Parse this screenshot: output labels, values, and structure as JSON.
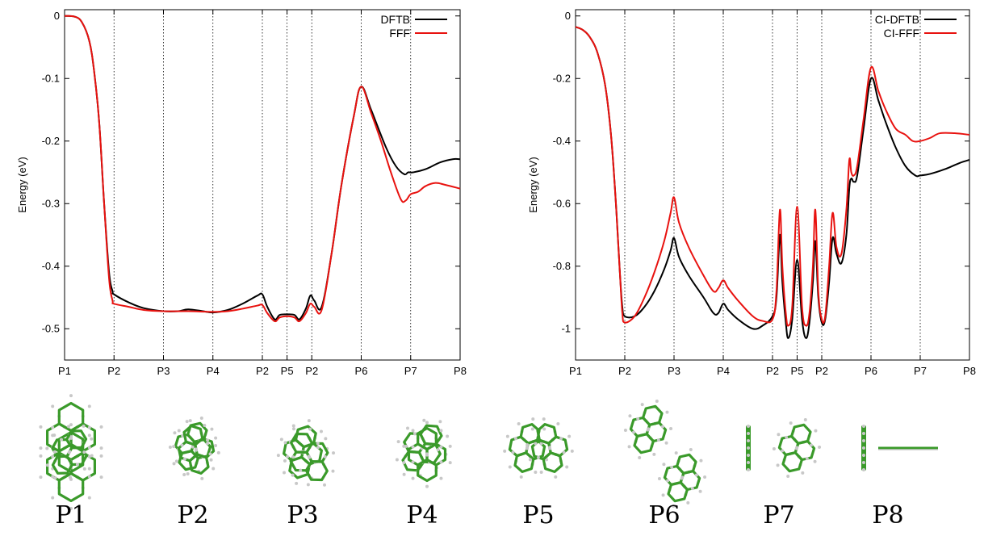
{
  "chart_data": [
    {
      "type": "line",
      "title": "",
      "xlabel": "",
      "ylabel": "Energy (eV)",
      "x_ticks": [
        {
          "label": "P1",
          "pos": 0
        },
        {
          "label": "P2",
          "pos": 1
        },
        {
          "label": "P3",
          "pos": 2
        },
        {
          "label": "P4",
          "pos": 3
        },
        {
          "label": "P2",
          "pos": 4
        },
        {
          "label": "P5",
          "pos": 4.5
        },
        {
          "label": "P2",
          "pos": 5
        },
        {
          "label": "P6",
          "pos": 6
        },
        {
          "label": "P7",
          "pos": 7
        },
        {
          "label": "P8",
          "pos": 8
        }
      ],
      "xlim": [
        0,
        8
      ],
      "ylim": [
        -0.55,
        0.01
      ],
      "y_ticks": [
        0,
        -0.1,
        -0.2,
        -0.3,
        -0.4,
        -0.5
      ],
      "y_tick_labels": [
        "0",
        "-0.1",
        "-0.2",
        "-0.3",
        "-0.4",
        "-0.5"
      ],
      "grid": "vertical dotted lines at path points",
      "legend_position": "top-right",
      "series": [
        {
          "name": "DFTB",
          "color": "#000000",
          "points": [
            [
              0,
              0
            ],
            [
              0.2,
              -0.001
            ],
            [
              0.35,
              -0.01
            ],
            [
              0.5,
              -0.04
            ],
            [
              0.6,
              -0.09
            ],
            [
              0.7,
              -0.17
            ],
            [
              0.8,
              -0.3
            ],
            [
              0.9,
              -0.41
            ],
            [
              0.97,
              -0.44
            ],
            [
              1.0,
              -0.445
            ],
            [
              1.3,
              -0.458
            ],
            [
              1.6,
              -0.467
            ],
            [
              2.0,
              -0.472
            ],
            [
              2.3,
              -0.472
            ],
            [
              2.5,
              -0.469
            ],
            [
              2.8,
              -0.472
            ],
            [
              3.0,
              -0.474
            ],
            [
              3.3,
              -0.47
            ],
            [
              3.6,
              -0.46
            ],
            [
              3.9,
              -0.447
            ],
            [
              4.0,
              -0.445
            ],
            [
              4.1,
              -0.465
            ],
            [
              4.25,
              -0.485
            ],
            [
              4.35,
              -0.478
            ],
            [
              4.5,
              -0.477
            ],
            [
              4.65,
              -0.478
            ],
            [
              4.75,
              -0.485
            ],
            [
              4.88,
              -0.468
            ],
            [
              4.97,
              -0.447
            ],
            [
              5.05,
              -0.455
            ],
            [
              5.2,
              -0.465
            ],
            [
              5.4,
              -0.38
            ],
            [
              5.6,
              -0.27
            ],
            [
              5.85,
              -0.16
            ],
            [
              6.0,
              -0.113
            ],
            [
              6.2,
              -0.15
            ],
            [
              6.5,
              -0.21
            ],
            [
              6.7,
              -0.24
            ],
            [
              6.87,
              -0.253
            ],
            [
              6.95,
              -0.25
            ],
            [
              7.05,
              -0.25
            ],
            [
              7.3,
              -0.245
            ],
            [
              7.6,
              -0.234
            ],
            [
              7.85,
              -0.229
            ],
            [
              8.0,
              -0.229
            ]
          ]
        },
        {
          "name": "FFF",
          "color": "#e8120f",
          "points": [
            [
              0,
              0
            ],
            [
              0.2,
              -0.001
            ],
            [
              0.35,
              -0.01
            ],
            [
              0.5,
              -0.04
            ],
            [
              0.6,
              -0.09
            ],
            [
              0.7,
              -0.17
            ],
            [
              0.8,
              -0.3
            ],
            [
              0.9,
              -0.42
            ],
            [
              0.97,
              -0.455
            ],
            [
              1.0,
              -0.46
            ],
            [
              1.3,
              -0.465
            ],
            [
              1.6,
              -0.47
            ],
            [
              2.0,
              -0.472
            ],
            [
              2.5,
              -0.472
            ],
            [
              3.0,
              -0.473
            ],
            [
              3.3,
              -0.472
            ],
            [
              3.6,
              -0.468
            ],
            [
              3.9,
              -0.463
            ],
            [
              4.0,
              -0.462
            ],
            [
              4.1,
              -0.475
            ],
            [
              4.25,
              -0.488
            ],
            [
              4.35,
              -0.482
            ],
            [
              4.5,
              -0.48
            ],
            [
              4.65,
              -0.482
            ],
            [
              4.75,
              -0.488
            ],
            [
              4.88,
              -0.475
            ],
            [
              4.97,
              -0.46
            ],
            [
              5.05,
              -0.465
            ],
            [
              5.2,
              -0.47
            ],
            [
              5.4,
              -0.38
            ],
            [
              5.6,
              -0.27
            ],
            [
              5.85,
              -0.16
            ],
            [
              6.0,
              -0.113
            ],
            [
              6.2,
              -0.155
            ],
            [
              6.4,
              -0.2
            ],
            [
              6.6,
              -0.25
            ],
            [
              6.8,
              -0.293
            ],
            [
              6.9,
              -0.295
            ],
            [
              7.0,
              -0.285
            ],
            [
              7.15,
              -0.281
            ],
            [
              7.3,
              -0.272
            ],
            [
              7.5,
              -0.267
            ],
            [
              7.7,
              -0.27
            ],
            [
              8.0,
              -0.276
            ]
          ]
        }
      ]
    },
    {
      "type": "line",
      "title": "",
      "xlabel": "",
      "ylabel": "Energy (eV)",
      "x_ticks": [
        {
          "label": "P1",
          "pos": 0
        },
        {
          "label": "P2",
          "pos": 1
        },
        {
          "label": "P3",
          "pos": 2
        },
        {
          "label": "P4",
          "pos": 3
        },
        {
          "label": "P2",
          "pos": 4
        },
        {
          "label": "P5",
          "pos": 4.5
        },
        {
          "label": "P2",
          "pos": 5
        },
        {
          "label": "P6",
          "pos": 6
        },
        {
          "label": "P7",
          "pos": 7
        },
        {
          "label": "P8",
          "pos": 8
        }
      ],
      "xlim": [
        0,
        8
      ],
      "ylim": [
        -1.1,
        0.02
      ],
      "y_ticks": [
        0,
        -0.2,
        -0.4,
        -0.6,
        -0.8,
        -1
      ],
      "y_tick_labels": [
        "0",
        "-0.2",
        "-0.4",
        "-0.6",
        "-0.8",
        "-1"
      ],
      "grid": "vertical dotted lines at path points",
      "legend_position": "top-right",
      "series": [
        {
          "name": "CI-DFTB",
          "color": "#000000",
          "points": [
            [
              0,
              -0.035
            ],
            [
              0.15,
              -0.045
            ],
            [
              0.3,
              -0.07
            ],
            [
              0.45,
              -0.12
            ],
            [
              0.6,
              -0.22
            ],
            [
              0.72,
              -0.38
            ],
            [
              0.82,
              -0.6
            ],
            [
              0.9,
              -0.82
            ],
            [
              0.95,
              -0.93
            ],
            [
              1.0,
              -0.96
            ],
            [
              1.2,
              -0.96
            ],
            [
              1.4,
              -0.93
            ],
            [
              1.6,
              -0.88
            ],
            [
              1.8,
              -0.81
            ],
            [
              1.93,
              -0.75
            ],
            [
              2.0,
              -0.71
            ],
            [
              2.1,
              -0.77
            ],
            [
              2.3,
              -0.83
            ],
            [
              2.6,
              -0.9
            ],
            [
              2.8,
              -0.95
            ],
            [
              2.9,
              -0.95
            ],
            [
              3.0,
              -0.92
            ],
            [
              3.1,
              -0.94
            ],
            [
              3.3,
              -0.97
            ],
            [
              3.6,
              -1.0
            ],
            [
              3.8,
              -0.99
            ],
            [
              4.0,
              -0.96
            ],
            [
              4.08,
              -0.9
            ],
            [
              4.15,
              -0.7
            ],
            [
              4.2,
              -0.85
            ],
            [
              4.27,
              -0.98
            ],
            [
              4.32,
              -1.03
            ],
            [
              4.4,
              -0.97
            ],
            [
              4.5,
              -0.78
            ],
            [
              4.6,
              -0.97
            ],
            [
              4.68,
              -1.03
            ],
            [
              4.75,
              -0.98
            ],
            [
              4.82,
              -0.85
            ],
            [
              4.87,
              -0.72
            ],
            [
              4.93,
              -0.9
            ],
            [
              5.0,
              -0.98
            ],
            [
              5.07,
              -0.97
            ],
            [
              5.15,
              -0.85
            ],
            [
              5.22,
              -0.71
            ],
            [
              5.3,
              -0.76
            ],
            [
              5.4,
              -0.79
            ],
            [
              5.5,
              -0.7
            ],
            [
              5.56,
              -0.55
            ],
            [
              5.6,
              -0.52
            ],
            [
              5.65,
              -0.53
            ],
            [
              5.72,
              -0.51
            ],
            [
              5.85,
              -0.36
            ],
            [
              6.0,
              -0.2
            ],
            [
              6.15,
              -0.27
            ],
            [
              6.3,
              -0.34
            ],
            [
              6.5,
              -0.42
            ],
            [
              6.7,
              -0.48
            ],
            [
              6.9,
              -0.51
            ],
            [
              7.0,
              -0.51
            ],
            [
              7.2,
              -0.505
            ],
            [
              7.5,
              -0.49
            ],
            [
              7.8,
              -0.47
            ],
            [
              8.0,
              -0.46
            ]
          ]
        },
        {
          "name": "CI-FFF",
          "color": "#e8120f",
          "points": [
            [
              0,
              -0.035
            ],
            [
              0.15,
              -0.045
            ],
            [
              0.3,
              -0.07
            ],
            [
              0.45,
              -0.12
            ],
            [
              0.6,
              -0.22
            ],
            [
              0.72,
              -0.38
            ],
            [
              0.82,
              -0.6
            ],
            [
              0.9,
              -0.82
            ],
            [
              0.95,
              -0.95
            ],
            [
              1.0,
              -0.98
            ],
            [
              1.2,
              -0.96
            ],
            [
              1.4,
              -0.9
            ],
            [
              1.6,
              -0.82
            ],
            [
              1.8,
              -0.72
            ],
            [
              1.93,
              -0.63
            ],
            [
              2.0,
              -0.58
            ],
            [
              2.1,
              -0.66
            ],
            [
              2.3,
              -0.74
            ],
            [
              2.6,
              -0.83
            ],
            [
              2.8,
              -0.88
            ],
            [
              2.9,
              -0.87
            ],
            [
              3.0,
              -0.845
            ],
            [
              3.1,
              -0.87
            ],
            [
              3.3,
              -0.91
            ],
            [
              3.6,
              -0.96
            ],
            [
              3.8,
              -0.975
            ],
            [
              4.0,
              -0.97
            ],
            [
              4.08,
              -0.88
            ],
            [
              4.15,
              -0.62
            ],
            [
              4.2,
              -0.8
            ],
            [
              4.27,
              -0.95
            ],
            [
              4.32,
              -0.99
            ],
            [
              4.4,
              -0.93
            ],
            [
              4.5,
              -0.61
            ],
            [
              4.6,
              -0.93
            ],
            [
              4.68,
              -0.99
            ],
            [
              4.75,
              -0.95
            ],
            [
              4.82,
              -0.8
            ],
            [
              4.87,
              -0.62
            ],
            [
              4.93,
              -0.88
            ],
            [
              5.0,
              -0.97
            ],
            [
              5.07,
              -0.96
            ],
            [
              5.15,
              -0.8
            ],
            [
              5.22,
              -0.63
            ],
            [
              5.3,
              -0.74
            ],
            [
              5.4,
              -0.76
            ],
            [
              5.5,
              -0.62
            ],
            [
              5.56,
              -0.46
            ],
            [
              5.6,
              -0.5
            ],
            [
              5.65,
              -0.51
            ],
            [
              5.72,
              -0.48
            ],
            [
              5.85,
              -0.33
            ],
            [
              6.0,
              -0.165
            ],
            [
              6.15,
              -0.24
            ],
            [
              6.3,
              -0.3
            ],
            [
              6.5,
              -0.36
            ],
            [
              6.7,
              -0.38
            ],
            [
              6.85,
              -0.4
            ],
            [
              7.0,
              -0.4
            ],
            [
              7.2,
              -0.39
            ],
            [
              7.4,
              -0.375
            ],
            [
              7.7,
              -0.375
            ],
            [
              8.0,
              -0.38
            ]
          ]
        }
      ]
    }
  ],
  "captions": [
    "P1",
    "P2",
    "P3",
    "P4",
    "P5",
    "P6",
    "P7",
    "P8"
  ],
  "molecule_colors": {
    "carbon": "#3a9a2a",
    "hydrogen": "#c8c8c8"
  }
}
